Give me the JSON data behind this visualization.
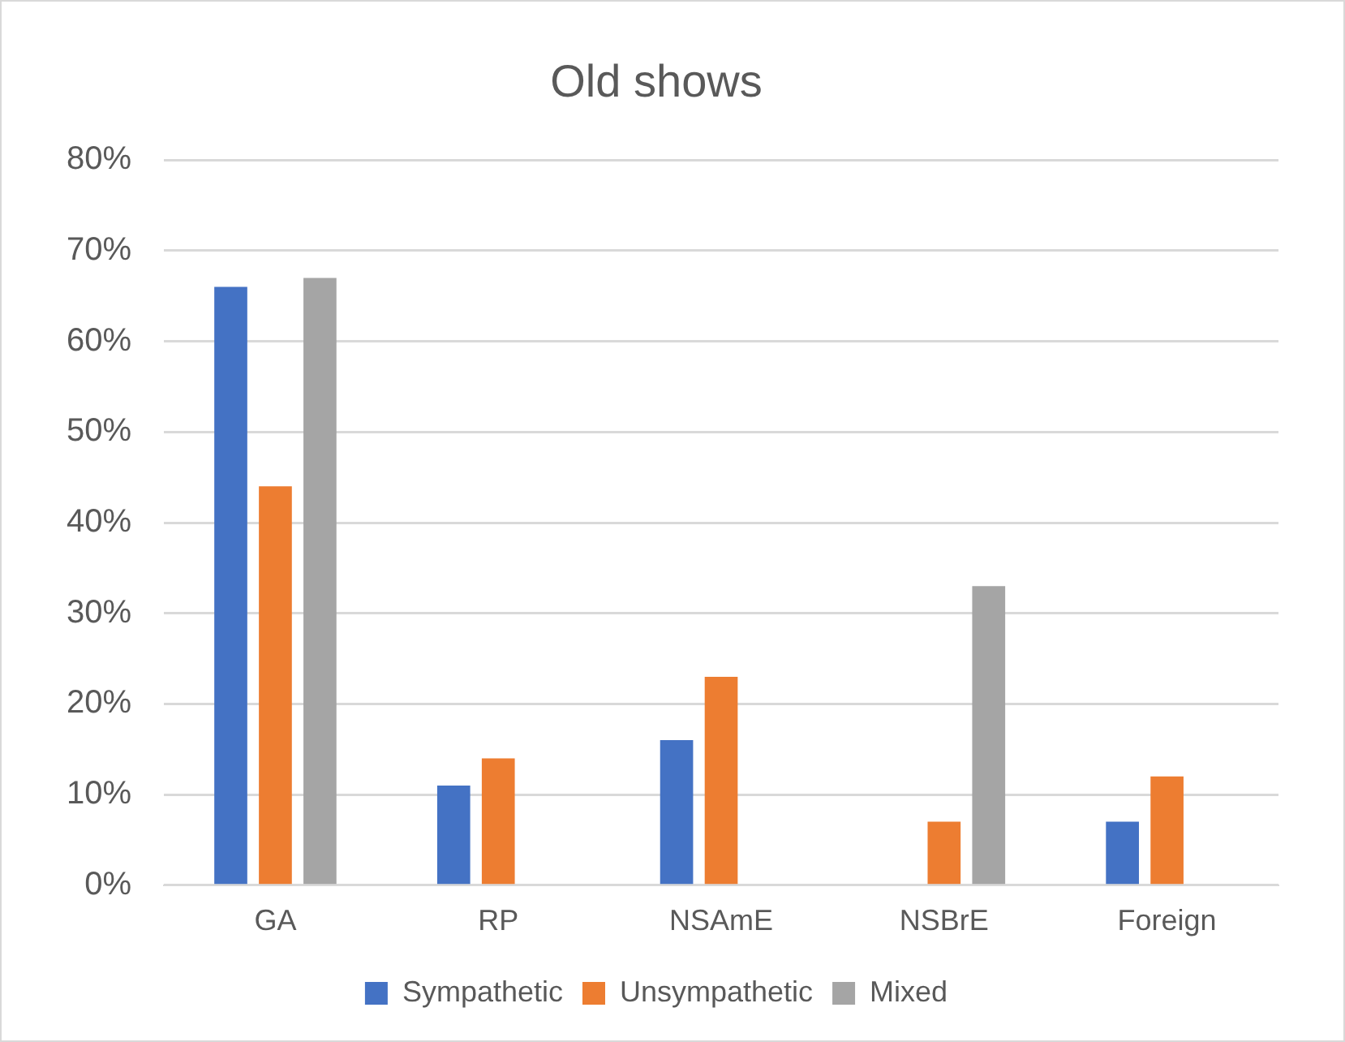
{
  "chart_data": {
    "type": "bar",
    "title": "Old shows",
    "categories": [
      "GA",
      "RP",
      "NSAmE",
      "NSBrE",
      "Foreign"
    ],
    "series": [
      {
        "name": "Sympathetic",
        "color": "#4472c4",
        "values": [
          66,
          11,
          16,
          0,
          7
        ]
      },
      {
        "name": "Unsympathetic",
        "color": "#ed7d31",
        "values": [
          44,
          14,
          23,
          7,
          12
        ]
      },
      {
        "name": "Mixed",
        "color": "#a5a5a5",
        "values": [
          67,
          0,
          0,
          33,
          0
        ]
      }
    ],
    "ylim": [
      0,
      80
    ],
    "yticks": [
      {
        "value": 0,
        "label": "0%"
      },
      {
        "value": 10,
        "label": "10%"
      },
      {
        "value": 20,
        "label": "20%"
      },
      {
        "value": 30,
        "label": "30%"
      },
      {
        "value": 40,
        "label": "40%"
      },
      {
        "value": 50,
        "label": "50%"
      },
      {
        "value": 60,
        "label": "60%"
      },
      {
        "value": 70,
        "label": "70%"
      },
      {
        "value": 80,
        "label": "80%"
      }
    ],
    "grid": "y",
    "legend": "bottom"
  }
}
